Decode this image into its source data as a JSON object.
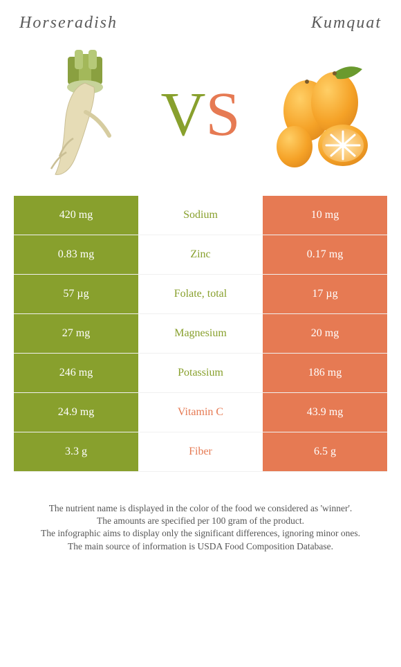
{
  "header": {
    "left_title": "Horseradish",
    "right_title": "Kumquat",
    "vs_v": "V",
    "vs_s": "S"
  },
  "colors": {
    "left": "#88a02d",
    "right": "#e67a53",
    "row_border": "#f0f0f0",
    "text_title": "#5a5a5a",
    "footer_text": "#555555",
    "bg": "#ffffff"
  },
  "rows": [
    {
      "left": "420 mg",
      "label": "Sodium",
      "right": "10 mg",
      "winner": "left"
    },
    {
      "left": "0.83 mg",
      "label": "Zinc",
      "right": "0.17 mg",
      "winner": "left"
    },
    {
      "left": "57 µg",
      "label": "Folate, total",
      "right": "17 µg",
      "winner": "left"
    },
    {
      "left": "27 mg",
      "label": "Magnesium",
      "right": "20 mg",
      "winner": "left"
    },
    {
      "left": "246 mg",
      "label": "Potassium",
      "right": "186 mg",
      "winner": "left"
    },
    {
      "left": "24.9 mg",
      "label": "Vitamin C",
      "right": "43.9 mg",
      "winner": "right"
    },
    {
      "left": "3.3 g",
      "label": "Fiber",
      "right": "6.5 g",
      "winner": "right"
    }
  ],
  "footer": {
    "l1": "The nutrient name is displayed in the color of the food we considered as 'winner'.",
    "l2": "The amounts are specified per 100 gram of the product.",
    "l3": "The infographic aims to display only the significant differences, ignoring minor ones.",
    "l4": "The main source of information is USDA Food Composition Database."
  }
}
